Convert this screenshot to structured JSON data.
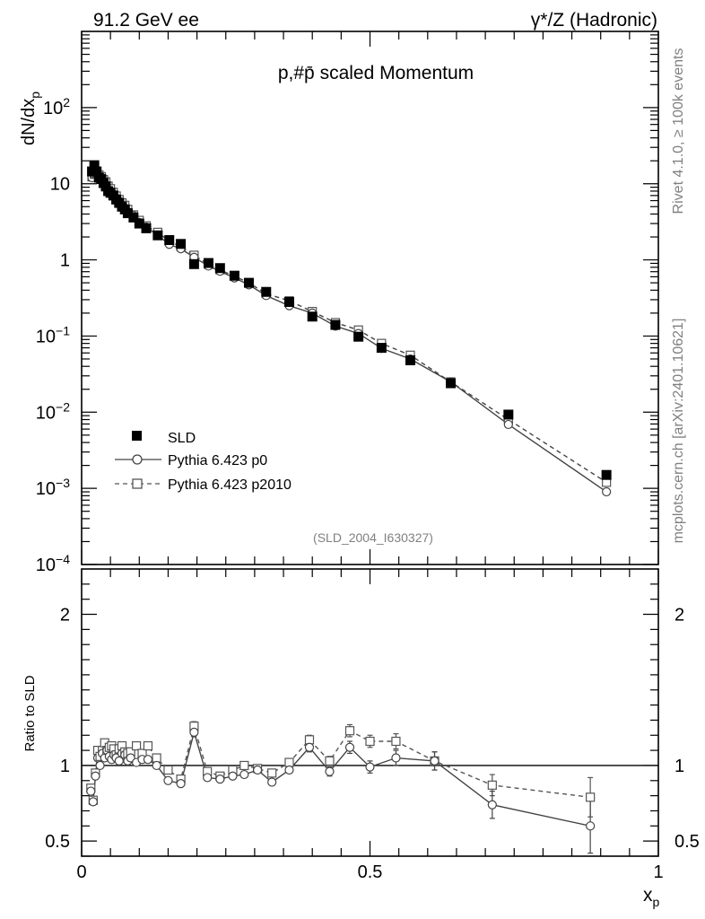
{
  "header": {
    "left": "91.2 GeV ee",
    "right": "γ*/Z (Hadronic)"
  },
  "side_text": {
    "rivet": "Rivet 4.1.0, ≥ 100k events",
    "mcplots": "mcplots.cern.ch [arXiv:2401.10621]"
  },
  "analysis_id": "(SLD_2004_I630327)",
  "chart_data": [
    {
      "type": "scatter",
      "title": "p,#p̄ scaled Momentum",
      "ylabel": "dN/dx_p",
      "yscale": "log",
      "ylim": [
        0.0001,
        1000
      ],
      "xlim": [
        0,
        1
      ],
      "yticks": [
        {
          "v": 0.0001,
          "base": "10",
          "exp": "−4"
        },
        {
          "v": 0.001,
          "base": "10",
          "exp": "−3"
        },
        {
          "v": 0.01,
          "base": "10",
          "exp": "−2"
        },
        {
          "v": 0.1,
          "base": "10",
          "exp": "−1"
        },
        {
          "v": 1,
          "base": "1",
          "exp": ""
        },
        {
          "v": 10,
          "base": "10",
          "exp": ""
        },
        {
          "v": 100,
          "base": "10",
          "exp": "2"
        }
      ],
      "legend": [
        "SLD",
        "Pythia 6.423 p0",
        "Pythia 6.423 p2010"
      ],
      "x": [
        0.018,
        0.022,
        0.026,
        0.03,
        0.034,
        0.038,
        0.042,
        0.046,
        0.05,
        0.055,
        0.06,
        0.065,
        0.07,
        0.075,
        0.08,
        0.09,
        0.1,
        0.112,
        0.132,
        0.152,
        0.172,
        0.195,
        0.22,
        0.24,
        0.265,
        0.29,
        0.32,
        0.36,
        0.4,
        0.44,
        0.48,
        0.52,
        0.57,
        0.64,
        0.74,
        0.91
      ],
      "series": [
        {
          "name": "SLD",
          "marker": "filled-square",
          "values": [
            14.5,
            17.5,
            14.5,
            12,
            11.5,
            10.2,
            9.2,
            8,
            7.6,
            7.0,
            6.2,
            5.6,
            5.0,
            4.6,
            4.1,
            3.6,
            3.0,
            2.6,
            2.1,
            1.82,
            1.62,
            0.88,
            0.91,
            0.78,
            0.62,
            0.5,
            0.38,
            0.28,
            0.18,
            0.14,
            0.098,
            0.07,
            0.048,
            0.024,
            0.0093,
            0.0015
          ]
        },
        {
          "name": "Pythia 6.423 p0",
          "marker": "open-circle",
          "line": "solid",
          "values": [
            12.0,
            13.2,
            13.5,
            12.9,
            11.6,
            10.6,
            9.7,
            8.7,
            8.0,
            7.3,
            6.5,
            5.9,
            5.2,
            4.8,
            4.3,
            3.8,
            3.1,
            2.7,
            2.1,
            1.6,
            1.4,
            1.08,
            0.83,
            0.71,
            0.58,
            0.47,
            0.34,
            0.25,
            0.2,
            0.135,
            0.108,
            0.069,
            0.05,
            0.025,
            0.0069,
            0.0009
          ]
        },
        {
          "name": "Pythia 6.423 p2010",
          "marker": "open-square",
          "line": "dashed",
          "values": [
            12.3,
            13.3,
            13.7,
            13.1,
            12.4,
            11.3,
            10.6,
            9.3,
            8.6,
            7.7,
            6.9,
            6.2,
            5.6,
            5.2,
            4.6,
            3.9,
            3.3,
            2.8,
            2.3,
            1.75,
            1.5,
            1.15,
            0.87,
            0.74,
            0.61,
            0.5,
            0.36,
            0.29,
            0.21,
            0.15,
            0.12,
            0.08,
            0.056,
            0.025,
            0.008,
            0.0012
          ]
        }
      ]
    },
    {
      "type": "line",
      "ylabel": "Ratio to SLD",
      "xlabel": "x_p",
      "xlim": [
        0,
        1
      ],
      "ylim": [
        0.4,
        2.3
      ],
      "yticks": [
        0.5,
        1,
        2
      ],
      "ytick_labels": [
        "0.5",
        "1",
        "2"
      ],
      "xticks": [
        0,
        0.5,
        1
      ],
      "xtick_labels": [
        "0",
        "0.5",
        "1"
      ],
      "reference": 1,
      "x": [
        0.016,
        0.02,
        0.024,
        0.028,
        0.032,
        0.036,
        0.04,
        0.044,
        0.048,
        0.052,
        0.056,
        0.06,
        0.065,
        0.07,
        0.075,
        0.08,
        0.085,
        0.095,
        0.105,
        0.115,
        0.13,
        0.15,
        0.172,
        0.195,
        0.218,
        0.24,
        0.262,
        0.282,
        0.305,
        0.33,
        0.36,
        0.395,
        0.43,
        0.465,
        0.5,
        0.545,
        0.612,
        0.712,
        0.882
      ],
      "series": [
        {
          "name": "Pythia 6.423 p0",
          "values": [
            0.83,
            0.76,
            0.93,
            1.05,
            1.0,
            1.08,
            1.05,
            1.1,
            1.06,
            1.04,
            1.07,
            1.05,
            1.03,
            1.08,
            1.07,
            1.03,
            1.05,
            1.02,
            1.04,
            1.04,
            1.0,
            0.9,
            0.88,
            1.22,
            0.92,
            0.91,
            0.93,
            0.94,
            0.97,
            0.89,
            0.97,
            1.12,
            0.96,
            1.12,
            0.99,
            1.05,
            1.03,
            0.74,
            0.6
          ],
          "err": [
            0.02,
            0.02,
            0.02,
            0.02,
            0.02,
            0.02,
            0.02,
            0.02,
            0.02,
            0.02,
            0.02,
            0.02,
            0.02,
            0.02,
            0.02,
            0.02,
            0.02,
            0.02,
            0.02,
            0.02,
            0.02,
            0.02,
            0.02,
            0.03,
            0.02,
            0.02,
            0.02,
            0.02,
            0.02,
            0.02,
            0.02,
            0.03,
            0.03,
            0.04,
            0.04,
            0.05,
            0.06,
            0.09,
            0.18
          ]
        },
        {
          "name": "Pythia 6.423 p2010",
          "values": [
            0.85,
            0.77,
            0.95,
            1.1,
            1.06,
            1.1,
            1.15,
            1.1,
            1.12,
            1.13,
            1.11,
            1.07,
            1.11,
            1.13,
            1.09,
            1.08,
            1.09,
            1.13,
            1.08,
            1.13,
            1.05,
            0.97,
            0.91,
            1.26,
            0.96,
            0.93,
            0.97,
            1.0,
            0.98,
            0.95,
            1.02,
            1.17,
            1.03,
            1.23,
            1.16,
            1.16,
            1.03,
            0.87,
            0.79
          ],
          "err": [
            0.02,
            0.02,
            0.02,
            0.02,
            0.02,
            0.02,
            0.02,
            0.02,
            0.02,
            0.02,
            0.02,
            0.02,
            0.02,
            0.02,
            0.02,
            0.02,
            0.02,
            0.02,
            0.02,
            0.02,
            0.02,
            0.02,
            0.02,
            0.03,
            0.02,
            0.02,
            0.02,
            0.02,
            0.02,
            0.02,
            0.02,
            0.03,
            0.03,
            0.04,
            0.04,
            0.05,
            0.06,
            0.07,
            0.13
          ]
        }
      ]
    }
  ]
}
